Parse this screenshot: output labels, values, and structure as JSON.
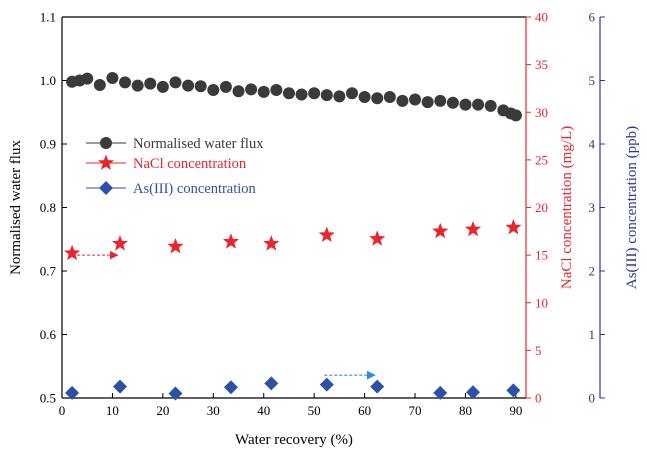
{
  "chart_data": {
    "type": "scatter",
    "xlabel": "Water recovery (%)",
    "xlim": [
      0,
      92
    ],
    "xticks": [
      0,
      10,
      20,
      30,
      40,
      50,
      60,
      70,
      80,
      90
    ],
    "axes": {
      "left": {
        "label": "Normalised water flux",
        "lim": [
          0.5,
          1.1
        ],
        "ticks": [
          "0.5",
          "0.6",
          "0.7",
          "0.8",
          "0.9",
          "1.0",
          "1.1"
        ],
        "color": "#000000"
      },
      "right1": {
        "label": "NaCl concentration (mg/L)",
        "lim": [
          0,
          40
        ],
        "ticks": [
          "0",
          "5",
          "10",
          "15",
          "20",
          "25",
          "30",
          "35",
          "40"
        ],
        "color": "#e8262d"
      },
      "right2": {
        "label": "As(III) concentration (ppb)",
        "lim": [
          0,
          6
        ],
        "ticks": [
          "0",
          "1",
          "2",
          "3",
          "4",
          "5",
          "6"
        ],
        "color": "#2b3990"
      }
    },
    "series": [
      {
        "name": "Normalised water flux",
        "axis": "left",
        "marker": "circle",
        "color": "#3a3a3a",
        "x": [
          2,
          3.5,
          5,
          7.5,
          10,
          12.5,
          15,
          17.5,
          20,
          22.5,
          25,
          27.5,
          30,
          32.5,
          35,
          37.5,
          40,
          42.5,
          45,
          47.5,
          50,
          52.5,
          55,
          57.5,
          60,
          62.5,
          65,
          67.5,
          70,
          72.5,
          75,
          77.5,
          80,
          82.5,
          85,
          87.5,
          89,
          90
        ],
        "y": [
          0.998,
          1.0,
          1.003,
          0.993,
          1.004,
          0.997,
          0.992,
          0.995,
          0.99,
          0.997,
          0.992,
          0.991,
          0.985,
          0.99,
          0.983,
          0.986,
          0.982,
          0.985,
          0.98,
          0.978,
          0.98,
          0.977,
          0.975,
          0.98,
          0.974,
          0.972,
          0.974,
          0.968,
          0.97,
          0.966,
          0.968,
          0.965,
          0.962,
          0.962,
          0.96,
          0.953,
          0.948,
          0.945
        ]
      },
      {
        "name": "NaCl concentration",
        "axis": "right1",
        "marker": "star",
        "color": "#e8262d",
        "x": [
          2,
          11.5,
          22.5,
          33.5,
          41.5,
          52.5,
          62.5,
          75,
          81.5,
          89.5
        ],
        "y": [
          15.2,
          16.2,
          15.9,
          16.4,
          16.2,
          17.1,
          16.7,
          17.5,
          17.7,
          17.9
        ]
      },
      {
        "name": "As(III) concentration",
        "axis": "right2",
        "marker": "diamond",
        "color": "#2b52a6",
        "x": [
          2,
          11.5,
          22.5,
          33.5,
          41.5,
          52.5,
          62.5,
          75,
          81.5,
          89.5
        ],
        "y": [
          0.08,
          0.18,
          0.07,
          0.17,
          0.23,
          0.21,
          0.18,
          0.08,
          0.09,
          0.12
        ]
      }
    ],
    "annotations": [
      {
        "type": "dashed-arrow",
        "color": "#e8262d",
        "axis": "left",
        "from": [
          2,
          0.725
        ],
        "to": [
          11,
          0.725
        ]
      },
      {
        "type": "dashed-arrow",
        "color": "#2b8fd0",
        "axis": "left",
        "from": [
          52,
          0.536
        ],
        "to": [
          62,
          0.536
        ]
      }
    ],
    "legend": {
      "placement": "upper-left"
    }
  }
}
